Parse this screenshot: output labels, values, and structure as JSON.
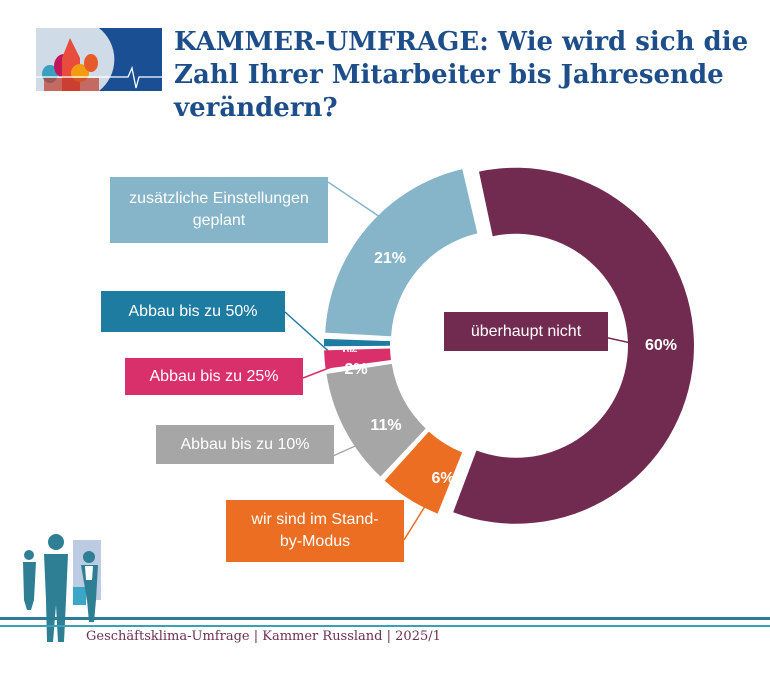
{
  "header": {
    "title": "KAMMER-UMFRAGE: Wie wird sich die Zahl Ihrer Mitarbeiter bis Jahresende verändern?"
  },
  "chart_data": {
    "type": "pie",
    "donut": true,
    "title": "KAMMER-UMFRAGE: Wie wird sich die Zahl Ihrer Mitarbeiter bis Jahresende verändern?",
    "categories": [
      "überhaupt nicht",
      "wir sind im Stand-by-Modus",
      "Abbau bis zu 10%",
      "Abbau bis zu 25%",
      "Abbau bis zu 50%",
      "zusätzliche Einstellungen geplant"
    ],
    "values": [
      60,
      6,
      11,
      2,
      1,
      21
    ],
    "labels": [
      "60%",
      "6%",
      "11%",
      "2%",
      "1%",
      "21%"
    ],
    "colors": [
      "#722b50",
      "#ec6e23",
      "#a6a6a6",
      "#d9306b",
      "#1e7ca0",
      "#86b4c8"
    ]
  },
  "footer": {
    "text": "Geschäftsklima-Umfrage | Kammer Russland | 2025/1"
  }
}
